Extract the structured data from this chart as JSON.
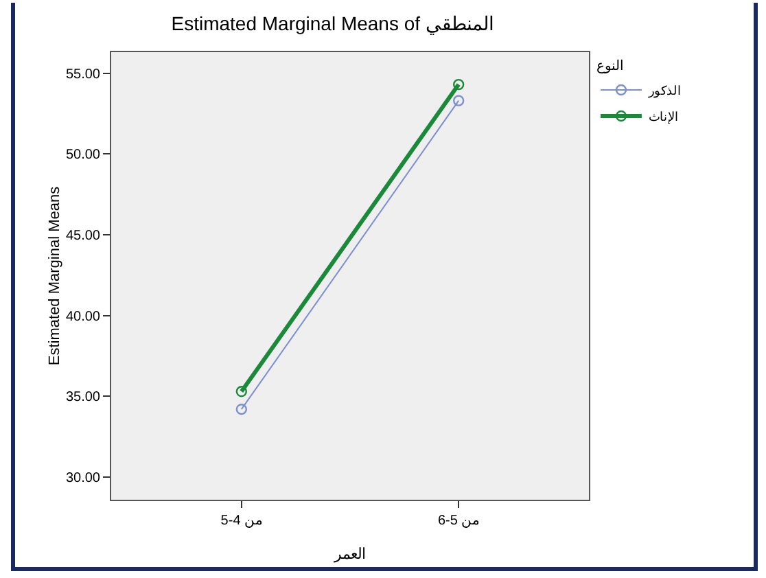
{
  "chart_data": {
    "type": "line",
    "title": "Estimated Marginal Means of المنطقي",
    "xlabel": "العمر",
    "ylabel": "Estimated Marginal Means",
    "legend_title": "النوع",
    "categories": [
      "5-4 من",
      "6-5 من"
    ],
    "series": [
      {
        "name": "الذكور",
        "color": "#7b8fd0",
        "values": [
          34.2,
          53.3
        ]
      },
      {
        "name": "الإناث",
        "color": "#1a8a3a",
        "values": [
          35.3,
          54.3
        ]
      }
    ],
    "ylim": [
      28.6,
      56.3
    ],
    "yticks": [
      {
        "value": 30,
        "label": "30.00"
      },
      {
        "value": 35,
        "label": "35.00"
      },
      {
        "value": 40,
        "label": "40.00"
      },
      {
        "value": 45,
        "label": "45.00"
      },
      {
        "value": 50,
        "label": "50.00"
      },
      {
        "value": 55,
        "label": "55.00"
      }
    ],
    "grid": false,
    "legend": "top right",
    "marker": "circle",
    "line_style": "solid"
  }
}
